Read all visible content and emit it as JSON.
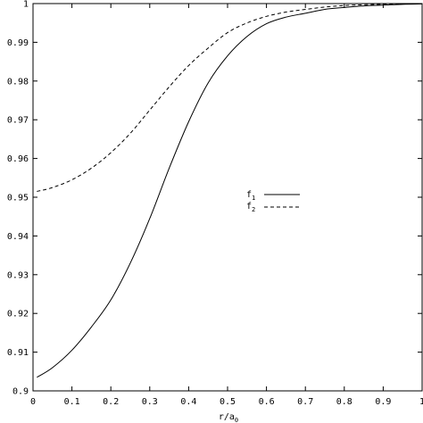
{
  "chart_data": {
    "type": "line",
    "xlabel": {
      "base": "r/a",
      "sub": "0"
    },
    "ylabel": "",
    "xlim": [
      0,
      1
    ],
    "ylim": [
      0.9,
      1.0
    ],
    "xticks": [
      "0",
      "0.1",
      "0.2",
      "0.3",
      "0.4",
      "0.5",
      "0.6",
      "0.7",
      "0.8",
      "0.9",
      "1"
    ],
    "xtick_values": [
      0,
      0.1,
      0.2,
      0.3,
      0.4,
      0.5,
      0.6,
      0.7,
      0.8,
      0.9,
      1.0
    ],
    "yticks": [
      "0.9",
      "0.91",
      "0.92",
      "0.93",
      "0.94",
      "0.95",
      "0.96",
      "0.97",
      "0.98",
      "0.99",
      "1"
    ],
    "ytick_values": [
      0.9,
      0.91,
      0.92,
      0.93,
      0.94,
      0.95,
      0.96,
      0.97,
      0.98,
      0.99,
      1.0
    ],
    "grid": false,
    "legend_position": "center-right",
    "series": [
      {
        "name": "f",
        "name_sub": "1",
        "style": "solid",
        "color": "#000000",
        "x": [
          0.01,
          0.05,
          0.1,
          0.15,
          0.2,
          0.25,
          0.3,
          0.35,
          0.4,
          0.45,
          0.5,
          0.55,
          0.6,
          0.65,
          0.7,
          0.75,
          0.8,
          0.85,
          0.9,
          0.95,
          1.0
        ],
        "y": [
          0.9035,
          0.906,
          0.9105,
          0.9165,
          0.9235,
          0.933,
          0.9445,
          0.9575,
          0.9695,
          0.9795,
          0.9865,
          0.9915,
          0.9948,
          0.9965,
          0.9975,
          0.9985,
          0.999,
          0.9994,
          0.9996,
          0.9998,
          0.9999
        ]
      },
      {
        "name": "f",
        "name_sub": "2",
        "style": "dashed",
        "color": "#000000",
        "x": [
          0.01,
          0.05,
          0.1,
          0.15,
          0.2,
          0.25,
          0.3,
          0.35,
          0.4,
          0.45,
          0.5,
          0.55,
          0.6,
          0.65,
          0.7,
          0.75,
          0.8,
          0.85,
          0.9,
          0.95,
          1.0
        ],
        "y": [
          0.9515,
          0.9525,
          0.9545,
          0.9575,
          0.9615,
          0.9665,
          0.9725,
          0.9785,
          0.984,
          0.9885,
          0.9925,
          0.995,
          0.9967,
          0.9978,
          0.9985,
          0.9991,
          0.9995,
          0.9997,
          0.9998,
          0.9999,
          1.0
        ]
      }
    ]
  }
}
